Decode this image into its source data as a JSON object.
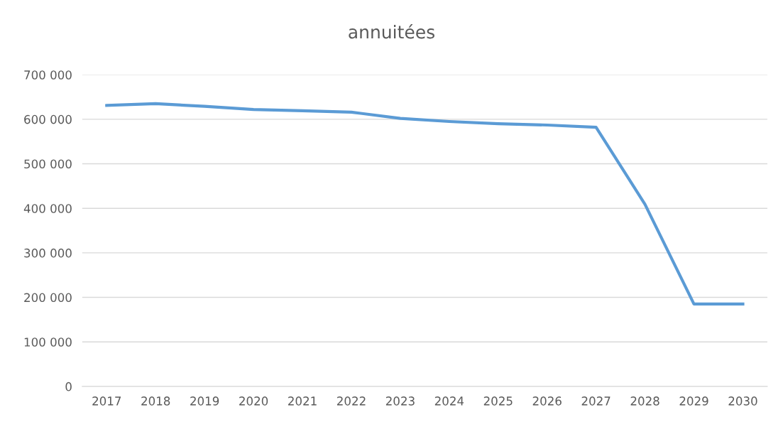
{
  "chart_data": {
    "type": "line",
    "title": "annuitées",
    "categories": [
      "2017",
      "2018",
      "2019",
      "2020",
      "2021",
      "2022",
      "2023",
      "2024",
      "2025",
      "2026",
      "2027",
      "2028",
      "2029",
      "2030"
    ],
    "series": [
      {
        "color": "#5b9bd5",
        "values": [
          631000,
          635000,
          629000,
          622000,
          619000,
          616000,
          602000,
          595000,
          590000,
          587000,
          582000,
          409000,
          185000,
          185000
        ]
      }
    ],
    "ylim": [
      0,
      700000
    ],
    "yticks": [
      {
        "value": 0,
        "label": "0"
      },
      {
        "value": 100000,
        "label": "100 000"
      },
      {
        "value": 200000,
        "label": "200 000"
      },
      {
        "value": 300000,
        "label": "300 000"
      },
      {
        "value": 400000,
        "label": "400 000"
      },
      {
        "value": 500000,
        "label": "500 000"
      },
      {
        "value": 600000,
        "label": "600 000"
      },
      {
        "value": 700000,
        "label": "700 000"
      }
    ],
    "grid": "y",
    "legend": false,
    "marker": "none",
    "line_style": "solid"
  }
}
